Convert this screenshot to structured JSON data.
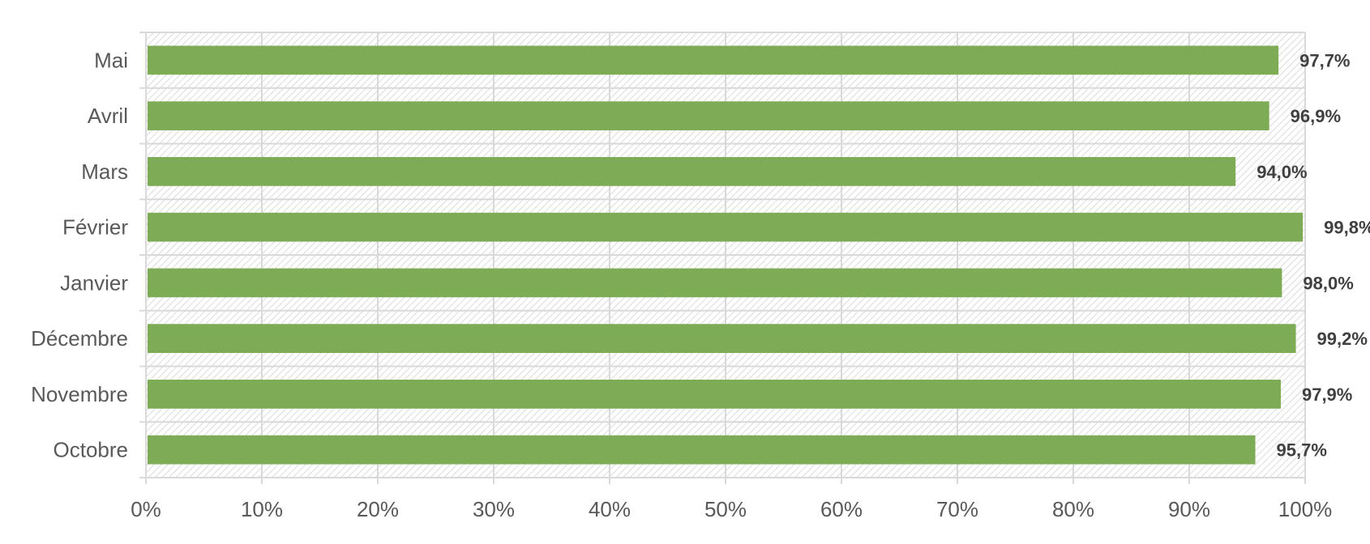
{
  "chart_data": {
    "type": "bar",
    "orientation": "horizontal",
    "categories": [
      "Mai",
      "Avril",
      "Mars",
      "Février",
      "Janvier",
      "Décembre",
      "Novembre",
      "Octobre"
    ],
    "values": [
      97.7,
      96.9,
      94.0,
      99.8,
      98.0,
      99.2,
      97.9,
      95.7
    ],
    "value_labels": [
      "97,7%",
      "96,9%",
      "94,0%",
      "99,8%",
      "98,0%",
      "99,2%",
      "97,9%",
      "95,7%"
    ],
    "x_ticks": [
      "0%",
      "10%",
      "20%",
      "30%",
      "40%",
      "50%",
      "60%",
      "70%",
      "80%",
      "90%",
      "100%"
    ],
    "xlim": [
      0,
      100
    ],
    "grid": true,
    "background_pattern": "diagonal-hatch",
    "colors": {
      "bar": "#7eab55",
      "grid": "#d9d9d9",
      "hatch": "#d0d0d0",
      "label_text": "#595959",
      "data_label_text": "#404040"
    },
    "title": "",
    "xlabel": "",
    "ylabel": ""
  }
}
